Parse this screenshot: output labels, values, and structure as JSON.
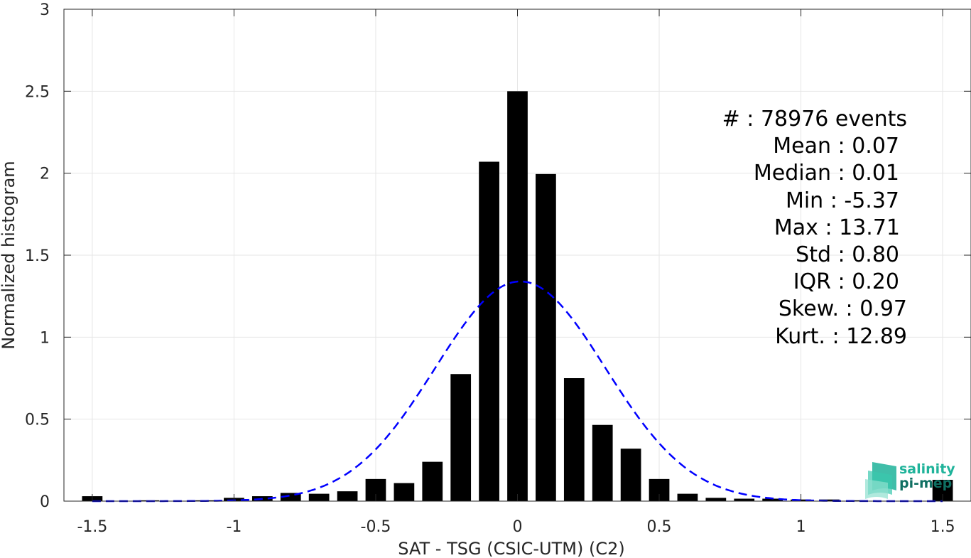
{
  "chart_data": {
    "type": "bar",
    "xlabel": "SAT - TSG (CSIC-UTM) (C2)",
    "ylabel": "Normalized histogram",
    "xlim": [
      -1.6,
      1.6
    ],
    "ylim": [
      0,
      3
    ],
    "xticks": [
      "-1.5",
      "-1",
      "-0.5",
      "0",
      "0.5",
      "1",
      "1.5"
    ],
    "xtick_values": [
      -1.5,
      -1,
      -0.5,
      0,
      0.5,
      1,
      1.5
    ],
    "yticks": [
      "0",
      "0.5",
      "1",
      "1.5",
      "2",
      "2.5",
      "3"
    ],
    "ytick_values": [
      0,
      0.5,
      1,
      1.5,
      2,
      2.5,
      3
    ],
    "grid": true,
    "bar_color": "#000000",
    "bins": [
      {
        "x": -1.5,
        "y": 0.03
      },
      {
        "x": -1.4,
        "y": 0.0
      },
      {
        "x": -1.3,
        "y": 0.005
      },
      {
        "x": -1.2,
        "y": 0.0
      },
      {
        "x": -1.1,
        "y": 0.005
      },
      {
        "x": -1.0,
        "y": 0.02
      },
      {
        "x": -0.9,
        "y": 0.03
      },
      {
        "x": -0.8,
        "y": 0.05
      },
      {
        "x": -0.7,
        "y": 0.045
      },
      {
        "x": -0.6,
        "y": 0.06
      },
      {
        "x": -0.5,
        "y": 0.135
      },
      {
        "x": -0.4,
        "y": 0.11
      },
      {
        "x": -0.3,
        "y": 0.24
      },
      {
        "x": -0.2,
        "y": 0.775
      },
      {
        "x": -0.1,
        "y": 2.07
      },
      {
        "x": 0.0,
        "y": 2.5
      },
      {
        "x": 0.1,
        "y": 1.995
      },
      {
        "x": 0.2,
        "y": 0.75
      },
      {
        "x": 0.3,
        "y": 0.465
      },
      {
        "x": 0.4,
        "y": 0.32
      },
      {
        "x": 0.5,
        "y": 0.135
      },
      {
        "x": 0.6,
        "y": 0.045
      },
      {
        "x": 0.7,
        "y": 0.02
      },
      {
        "x": 0.8,
        "y": 0.015
      },
      {
        "x": 0.9,
        "y": 0.015
      },
      {
        "x": 1.0,
        "y": 0.01
      },
      {
        "x": 1.1,
        "y": 0.01
      },
      {
        "x": 1.2,
        "y": 0.005
      },
      {
        "x": 1.3,
        "y": 0.0
      },
      {
        "x": 1.4,
        "y": 0.0
      },
      {
        "x": 1.5,
        "y": 0.13
      }
    ],
    "gaussian_fit": {
      "mean": 0.01,
      "std": 0.3,
      "peak": 1.34,
      "color": "#0000ff",
      "style": "dashed"
    }
  },
  "stats": {
    "events": "#  : 78976 events",
    "mean": "Mean : 0.07",
    "median": "Median : 0.01",
    "min": "Min : -5.37",
    "max": "Max : 13.71",
    "std": "Std : 0.80",
    "iqr": "IQR : 0.20",
    "skew": "Skew. : 0.97",
    "kurt": "Kurt. : 12.89"
  },
  "logo": {
    "line1": "salinity",
    "line2": "pi-mep",
    "colors": {
      "line1": "#1fb39a",
      "line2": "#0f6f62"
    }
  }
}
